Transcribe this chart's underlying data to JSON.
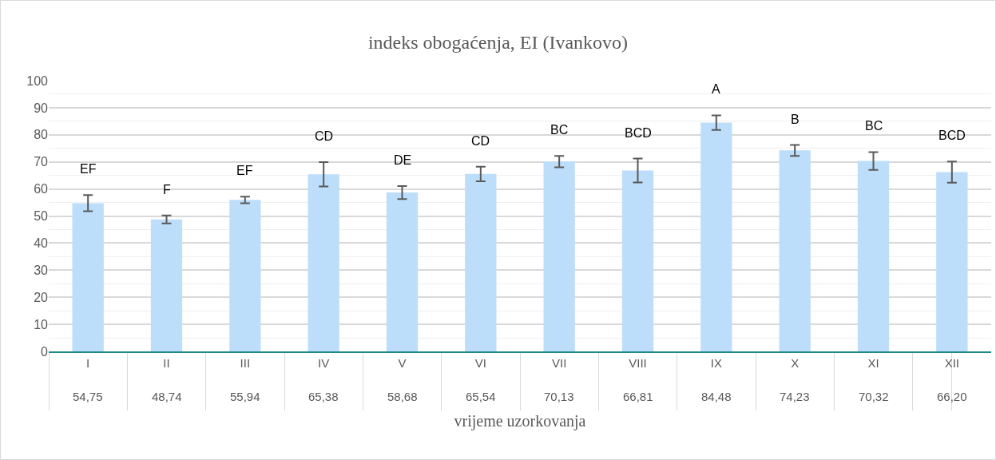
{
  "chart_data": {
    "type": "bar",
    "title": "indeks obogaćenja, EI (Ivankovo)",
    "xlabel": "vrijeme uzorkovanja",
    "categories": [
      "I",
      "II",
      "III",
      "IV",
      "V",
      "VI",
      "VII",
      "VIII",
      "IX",
      "X",
      "XI",
      "XII"
    ],
    "values": [
      54.75,
      48.74,
      55.94,
      65.38,
      58.68,
      65.54,
      70.13,
      66.81,
      84.48,
      74.23,
      70.32,
      66.2
    ],
    "value_labels": [
      "54,75",
      "48,74",
      "55,94",
      "65,38",
      "58,68",
      "65,54",
      "70,13",
      "66,81",
      "84,48",
      "74,23",
      "70,32",
      "66,20"
    ],
    "errors": [
      3,
      1.5,
      1.2,
      4.5,
      2.4,
      2.7,
      2.1,
      4.4,
      2.7,
      2,
      3.3,
      3.9
    ],
    "color": "#bddefa",
    "ylim": [
      0,
      100
    ],
    "yticks": [
      0,
      10,
      20,
      30,
      40,
      50,
      60,
      70,
      80,
      90,
      100
    ],
    "grid": "y",
    "annotations": [
      "EF",
      "F",
      "EF",
      "CD",
      "DE",
      "CD",
      "BC",
      "BCD",
      "A",
      "B",
      "BC",
      "BCD"
    ]
  }
}
